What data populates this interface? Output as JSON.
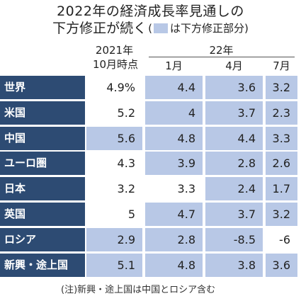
{
  "title": {
    "line1": "2022年の経済成長率見通しの",
    "line2_main": "下方修正が続く",
    "legend_open": "(",
    "legend_text": "は下方修正部分)",
    "legend_color": "#b8c8e6"
  },
  "header": {
    "col_base_year": "2021年",
    "col_base_sub": "10月時点",
    "group_year": "22年",
    "months": [
      "1月",
      "4月",
      "7月"
    ]
  },
  "colors": {
    "label_bg": "#2d4b73",
    "downgrade_shade": "#b8c8e6"
  },
  "chart_data": {
    "type": "table",
    "columns": [
      "2021年10月時点",
      "22年1月",
      "22年4月",
      "22年7月"
    ],
    "rows": [
      {
        "label": "世界",
        "values": [
          "4.9%",
          "4.4",
          "3.6",
          "3.2"
        ],
        "shaded": [
          false,
          true,
          true,
          true
        ]
      },
      {
        "label": "米国",
        "values": [
          "5.2",
          "4",
          "3.7",
          "2.3"
        ],
        "shaded": [
          false,
          true,
          true,
          true
        ]
      },
      {
        "label": "中国",
        "values": [
          "5.6",
          "4.8",
          "4.4",
          "3.3"
        ],
        "shaded": [
          true,
          true,
          true,
          true
        ]
      },
      {
        "label": "ユーロ圏",
        "values": [
          "4.3",
          "3.9",
          "2.8",
          "2.6"
        ],
        "shaded": [
          false,
          true,
          true,
          true
        ]
      },
      {
        "label": "日本",
        "values": [
          "3.2",
          "3.3",
          "2.4",
          "1.7"
        ],
        "shaded": [
          false,
          false,
          true,
          true
        ]
      },
      {
        "label": "英国",
        "values": [
          "5",
          "4.7",
          "3.7",
          "3.2"
        ],
        "shaded": [
          false,
          true,
          true,
          true
        ]
      },
      {
        "label": "ロシア",
        "values": [
          "2.9",
          "2.8",
          "-8.5",
          "-6"
        ],
        "shaded": [
          true,
          true,
          true,
          false
        ]
      },
      {
        "label": "新興・途上国",
        "values": [
          "5.1",
          "4.8",
          "3.8",
          "3.6"
        ],
        "shaded": [
          true,
          true,
          true,
          true
        ]
      }
    ]
  },
  "note": "(注)新興・途上国は中国とロシア含む"
}
